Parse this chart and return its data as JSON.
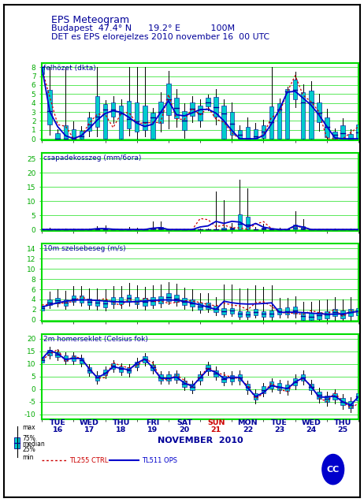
{
  "title_line1": "EPS Meteogram",
  "title_line2": "Budapest  47.4° N      19.2° E           100M",
  "title_line3": "DET es EPS elorejelzes 2010 november 16  00 UTC",
  "background_color": "#ffffff",
  "panel_border": "#00dd00",
  "grid_color": "#00dd00",
  "box_fill": "#00cccc",
  "box_border": "#000099",
  "whisker_color": "#000000",
  "det_color": "#cc0000",
  "ops_color": "#0000cc",
  "title_color": "#000099",
  "green_label_color": "#00aa00",
  "panels": [
    {
      "label": "felhözet (dkta)",
      "ylim": [
        -0.2,
        8.5
      ],
      "yticks": [
        0,
        1,
        2,
        3,
        4,
        5,
        6,
        7,
        8
      ],
      "ylabel_values": [
        "0",
        "1",
        "2",
        "3",
        "4",
        "5",
        "6",
        "7",
        "8"
      ]
    },
    {
      "label": "csapadekosszeg (mm/6ora)",
      "ylim": [
        -0.5,
        27
      ],
      "yticks": [
        0,
        5,
        10,
        15,
        20,
        25
      ],
      "ylabel_values": [
        "0",
        "5",
        "10",
        "15",
        "20",
        "25"
      ]
    },
    {
      "label": "10m szelsebeseg (m/s)",
      "ylim": [
        -0.3,
        15
      ],
      "yticks": [
        0,
        2,
        4,
        6,
        8,
        10,
        12,
        14
      ],
      "ylabel_values": [
        "0",
        "2",
        "4",
        "6",
        "8",
        "10",
        "12",
        "14"
      ]
    },
    {
      "label": "2m homerseklet (Celsius fok)",
      "ylim": [
        -12,
        22
      ],
      "yticks": [
        -10,
        -5,
        0,
        5,
        10,
        15,
        20
      ],
      "ylabel_values": [
        "-10",
        "-5",
        "0",
        "5",
        "10",
        "15",
        "20"
      ]
    }
  ],
  "x_day_names": [
    "TUE",
    "WED",
    "THU",
    "FRI",
    "SAT",
    "SUN",
    "MON",
    "TUE",
    "WED",
    "THU"
  ],
  "x_day_nums": [
    "16",
    "17",
    "18",
    "19",
    "20",
    "21",
    "22",
    "23",
    "24",
    "25"
  ],
  "x_label_colors": [
    "#000099",
    "#000099",
    "#000099",
    "#000099",
    "#000099",
    "#cc0000",
    "#000099",
    "#000099",
    "#000099",
    "#000099"
  ],
  "xlabel_bottom": "NOVEMBER  2010",
  "n_timesteps": 41,
  "seed": 99
}
